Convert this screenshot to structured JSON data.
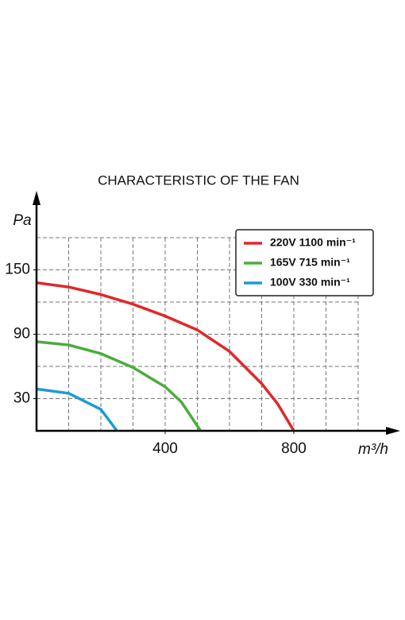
{
  "chart_data": {
    "type": "line",
    "title": "CHARACTERISTIC OF THE FAN",
    "x_label": "m³/h",
    "y_label": "Pa",
    "xlim": [
      0,
      1000
    ],
    "ylim": [
      0,
      180
    ],
    "xticks": [
      400,
      800
    ],
    "yticks": [
      30,
      90,
      150
    ],
    "xgrid": [
      100,
      200,
      300,
      400,
      500,
      600,
      700,
      800,
      900,
      1000
    ],
    "ygrid": [
      30,
      60,
      90,
      120,
      150,
      180
    ],
    "grid": true,
    "legend": "upper right",
    "series": [
      {
        "name": "220V 1100 min⁻¹",
        "color": "#e3262a",
        "x": [
          0,
          100,
          200,
          300,
          400,
          500,
          600,
          700,
          750,
          800
        ],
        "values": [
          138,
          134,
          127,
          118,
          107,
          94,
          74,
          44,
          25,
          0
        ]
      },
      {
        "name": "165V 715 min⁻¹",
        "color": "#4aad3c",
        "x": [
          0,
          100,
          200,
          300,
          400,
          450,
          510
        ],
        "values": [
          83,
          80,
          72,
          59,
          41,
          27,
          0
        ]
      },
      {
        "name": "100V 330 min⁻¹",
        "color": "#1a9bd7",
        "x": [
          0,
          100,
          200,
          250
        ],
        "values": [
          39,
          35,
          20,
          0
        ]
      }
    ]
  }
}
